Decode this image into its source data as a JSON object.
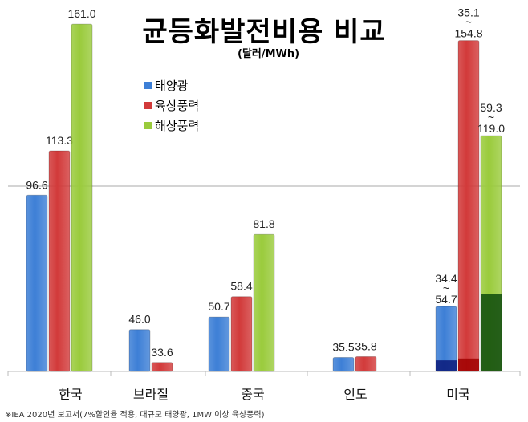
{
  "chart_data": {
    "type": "bar",
    "title": "균등화발전비용 비교",
    "subtitle": "(달러/MWh)",
    "ylabel": "",
    "xlabel": "",
    "ylim": [
      30,
      170
    ],
    "gridlines": [
      100
    ],
    "legend_position": "top-left",
    "categories": [
      "한국",
      "브라질",
      "중국",
      "인도",
      "미국"
    ],
    "series": [
      {
        "name": "태양광",
        "color": "#3d7fd6",
        "values": [
          96.6,
          46.0,
          50.7,
          35.5,
          [
            34.4,
            54.7
          ]
        ],
        "labels": [
          "96.6",
          "46.0",
          "50.7",
          "35.5",
          "34.4~54.7"
        ]
      },
      {
        "name": "육상풍력",
        "color": "#d23a3a",
        "values": [
          113.3,
          33.6,
          58.4,
          35.8,
          [
            35.1,
            154.8
          ]
        ],
        "labels": [
          "113.3",
          "33.6",
          "58.4",
          "35.8",
          "35.1~154.8"
        ]
      },
      {
        "name": "해상풍력",
        "color": "#9acb3c",
        "values": [
          161.0,
          null,
          81.8,
          null,
          [
            59.3,
            119.0
          ]
        ],
        "labels": [
          "161.0",
          "",
          "81.8",
          "",
          "59.3~119.0"
        ]
      }
    ],
    "range_dark_colors": [
      "#0a1a7a",
      "#a00000",
      "#0d4a0d"
    ],
    "footnote": "※IEA 2020년 보고서(7%할인율 적용, 대규모 태양광, 1MW 이상 육상풍력)"
  }
}
